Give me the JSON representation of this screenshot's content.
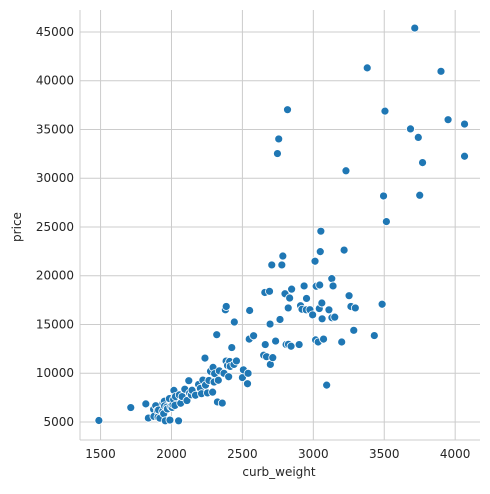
{
  "colors": {
    "point": "#1f77b4",
    "grid": "#cccccc",
    "text": "#262626",
    "background": "#ffffff"
  },
  "chart_data": {
    "type": "scatter",
    "xlabel": "curb_weight",
    "ylabel": "price",
    "overlay_text": "",
    "xlim": [
      1355,
      4175
    ],
    "ylim": [
      3150,
      47250
    ],
    "xticks": [
      1500,
      2000,
      2500,
      3000,
      3500,
      4000
    ],
    "yticks": [
      5000,
      10000,
      15000,
      20000,
      25000,
      30000,
      35000,
      40000,
      45000
    ],
    "grid": true,
    "series": [
      {
        "points": [
          [
            1488,
            5151
          ],
          [
            1713,
            6479
          ],
          [
            1819,
            6855
          ],
          [
            1837,
            5399
          ],
          [
            1874,
            6295
          ],
          [
            1876,
            5572
          ],
          [
            1889,
            6669
          ],
          [
            1900,
            6189
          ],
          [
            1905,
            5499
          ],
          [
            1909,
            6229
          ],
          [
            1918,
            5389
          ],
          [
            1938,
            6095
          ],
          [
            1940,
            6918
          ],
          [
            1945,
            5848
          ],
          [
            1950,
            7129
          ],
          [
            1951,
            6649
          ],
          [
            1956,
            5118
          ],
          [
            1967,
            6529
          ],
          [
            1971,
            6338
          ],
          [
            1985,
            7395
          ],
          [
            1989,
            5195
          ],
          [
            1995,
            6575
          ],
          [
            2004,
            6488
          ],
          [
            2010,
            6785
          ],
          [
            2015,
            7299
          ],
          [
            2017,
            8238
          ],
          [
            2024,
            6692
          ],
          [
            2028,
            7609
          ],
          [
            2050,
            5118
          ],
          [
            2055,
            7775
          ],
          [
            2065,
            6918
          ],
          [
            2075,
            7603
          ],
          [
            2094,
            8358
          ],
          [
            2109,
            7198
          ],
          [
            2122,
            9233
          ],
          [
            2128,
            7957
          ],
          [
            2140,
            7788
          ],
          [
            2145,
            8249
          ],
          [
            2169,
            7738
          ],
          [
            2191,
            8845
          ],
          [
            2204,
            8449
          ],
          [
            2212,
            7898
          ],
          [
            2221,
            9298
          ],
          [
            2236,
            11549
          ],
          [
            2240,
            8778
          ],
          [
            2254,
            7975
          ],
          [
            2264,
            9258
          ],
          [
            2275,
            10198
          ],
          [
            2290,
            8058
          ],
          [
            2293,
            10595
          ],
          [
            2300,
            9095
          ],
          [
            2304,
            9960
          ],
          [
            2319,
            13950
          ],
          [
            2324,
            7053
          ],
          [
            2330,
            9279
          ],
          [
            2337,
            10245
          ],
          [
            2358,
            6938
          ],
          [
            2370,
            9989
          ],
          [
            2380,
            16500
          ],
          [
            2385,
            11245
          ],
          [
            2386,
            16845
          ],
          [
            2395,
            10795
          ],
          [
            2403,
            9639
          ],
          [
            2410,
            11199
          ],
          [
            2414,
            10698
          ],
          [
            2425,
            12629
          ],
          [
            2440,
            10898
          ],
          [
            2443,
            15250
          ],
          [
            2458,
            11259
          ],
          [
            2500,
            9549
          ],
          [
            2507,
            10345
          ],
          [
            2535,
            8948
          ],
          [
            2536,
            8921
          ],
          [
            2540,
            9989
          ],
          [
            2548,
            13499
          ],
          [
            2551,
            16430
          ],
          [
            2579,
            13845
          ],
          [
            2650,
            11850
          ],
          [
            2658,
            18280
          ],
          [
            2661,
            12940
          ],
          [
            2670,
            11694
          ],
          [
            2691,
            18399
          ],
          [
            2695,
            15040
          ],
          [
            2697,
            10898
          ],
          [
            2707,
            21105
          ],
          [
            2714,
            11595
          ],
          [
            2734,
            13295
          ],
          [
            2747,
            32528
          ],
          [
            2756,
            34028
          ],
          [
            2765,
            15510
          ],
          [
            2778,
            21105
          ],
          [
            2785,
            22018
          ],
          [
            2800,
            18150
          ],
          [
            2808,
            12945
          ],
          [
            2818,
            37028
          ],
          [
            2823,
            16695
          ],
          [
            2824,
            12964
          ],
          [
            2833,
            17710
          ],
          [
            2843,
            12764
          ],
          [
            2847,
            18620
          ],
          [
            2900,
            12940
          ],
          [
            2910,
            16925
          ],
          [
            2920,
            16558
          ],
          [
            2935,
            18950
          ],
          [
            2950,
            16500
          ],
          [
            2952,
            17669
          ],
          [
            2976,
            16515
          ],
          [
            2995,
            15985
          ],
          [
            3012,
            21485
          ],
          [
            3016,
            13415
          ],
          [
            3020,
            18920
          ],
          [
            3034,
            13200
          ],
          [
            3042,
            16630
          ],
          [
            3045,
            19045
          ],
          [
            3049,
            22470
          ],
          [
            3053,
            24565
          ],
          [
            3062,
            15580
          ],
          [
            3060,
            17199
          ],
          [
            3072,
            13499
          ],
          [
            3094,
            8778
          ],
          [
            3110,
            16503
          ],
          [
            3130,
            19699
          ],
          [
            3131,
            15690
          ],
          [
            3139,
            18950
          ],
          [
            3151,
            15750
          ],
          [
            3200,
            13200
          ],
          [
            3217,
            22625
          ],
          [
            3230,
            30760
          ],
          [
            3252,
            17950
          ],
          [
            3265,
            16845
          ],
          [
            3285,
            14399
          ],
          [
            3296,
            16695
          ],
          [
            3380,
            41315
          ],
          [
            3430,
            13860
          ],
          [
            3485,
            17075
          ],
          [
            3495,
            28176
          ],
          [
            3505,
            36880
          ],
          [
            3515,
            25552
          ],
          [
            3685,
            35056
          ],
          [
            3715,
            45400
          ],
          [
            3740,
            34184
          ],
          [
            3750,
            28248
          ],
          [
            3770,
            31600
          ],
          [
            3900,
            40960
          ],
          [
            3950,
            36000
          ],
          [
            4066,
            32250
          ],
          [
            4066,
            35550
          ]
        ]
      }
    ]
  }
}
